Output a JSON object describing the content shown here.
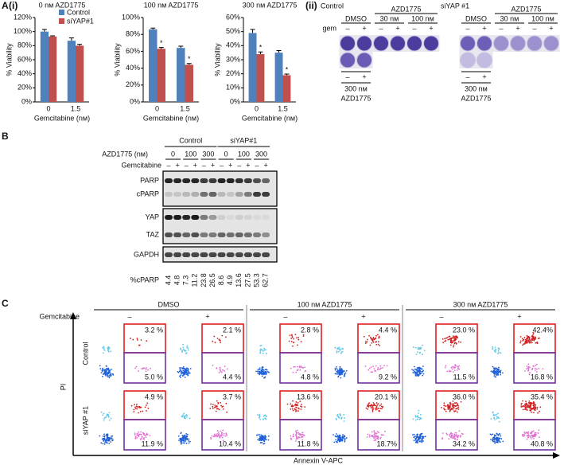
{
  "figure": {
    "panel_a": "A",
    "panel_a_sub": "(i)",
    "panel_a2": "(ii)",
    "panel_b": "B",
    "panel_c": "C"
  },
  "chart_data": [
    {
      "type": "bar",
      "title": "0 nᴍ AZD1775",
      "x_label": "Gemcitabine (nᴍ)",
      "y_label": "% Viability",
      "categories": [
        "0",
        "1.5"
      ],
      "series": [
        {
          "name": "Control",
          "color": "#4f81bd",
          "values": [
            100,
            87
          ],
          "errors": [
            3,
            4
          ]
        },
        {
          "name": "siYAP#1",
          "color": "#c0504d",
          "values": [
            93,
            80
          ],
          "errors": [
            1,
            2
          ]
        }
      ],
      "ylim": [
        0,
        120
      ],
      "yticks": [
        {
          "value": 0,
          "label": "0%"
        },
        {
          "value": 20,
          "label": "20%"
        },
        {
          "value": 40,
          "label": "40%"
        },
        {
          "value": 60,
          "label": "60%"
        },
        {
          "value": 80,
          "label": "80%"
        },
        {
          "value": 100,
          "label": "100%"
        },
        {
          "value": 120,
          "label": "120%"
        }
      ],
      "legend": "upper right"
    },
    {
      "type": "bar",
      "title": "100 nᴍ AZD1775",
      "x_label": "Gemcitabine (nᴍ)",
      "y_label": "% Viability",
      "categories": [
        "0",
        "1.5"
      ],
      "series": [
        {
          "color": "#4f81bd",
          "values": [
            86,
            64
          ],
          "errors": [
            1.5,
            2
          ]
        },
        {
          "color": "#c0504d",
          "values": [
            63,
            44
          ],
          "errors": [
            1.5,
            1.5
          ],
          "significance": [
            "*",
            "*"
          ]
        }
      ],
      "ylim": [
        0,
        100
      ],
      "yticks": [
        {
          "value": 0,
          "label": "0%"
        },
        {
          "value": 20,
          "label": "20%"
        },
        {
          "value": 40,
          "label": "40%"
        },
        {
          "value": 60,
          "label": "60%"
        },
        {
          "value": 80,
          "label": "80%"
        },
        {
          "value": 100,
          "label": "100%"
        }
      ]
    },
    {
      "type": "bar",
      "title": "300 nᴍ AZD1775",
      "x_label": "Gemcitabine (nᴍ)",
      "y_label": "% Viability",
      "categories": [
        "0",
        "1.5"
      ],
      "series": [
        {
          "color": "#4f81bd",
          "values": [
            49,
            35
          ],
          "errors": [
            2.5,
            1.5
          ]
        },
        {
          "color": "#c0504d",
          "values": [
            34,
            19
          ],
          "errors": [
            1.5,
            0.8
          ],
          "significance": [
            "*",
            "*"
          ]
        }
      ],
      "ylim": [
        0,
        60
      ],
      "yticks": [
        {
          "value": 0,
          "label": "0%"
        },
        {
          "value": 10,
          "label": "10%"
        },
        {
          "value": 20,
          "label": "20%"
        },
        {
          "value": 30,
          "label": "30%"
        },
        {
          "value": 40,
          "label": "40%"
        },
        {
          "value": 50,
          "label": "50%"
        },
        {
          "value": 60,
          "label": "60%"
        }
      ]
    }
  ],
  "plates": [
    {
      "title": "Control",
      "drug": "AZD1775",
      "groups": [
        "DMSO",
        "30 nᴍ",
        "100 nᴍ"
      ],
      "gem": "gem",
      "signs": [
        "–",
        "+",
        "–",
        "+",
        "–",
        "+"
      ],
      "extra_signs": [
        "–",
        "+"
      ],
      "extra_dose": "300 nᴍ",
      "extra_drug": "AZD1775"
    },
    {
      "title": "siYAP #1",
      "drug": "AZD1775",
      "groups": [
        "DMSO",
        "30 nᴍ",
        "100 nᴍ"
      ],
      "signs": [
        "–",
        "+",
        "–",
        "+",
        "–",
        "+"
      ],
      "extra_signs": [
        "–",
        "+"
      ],
      "extra_dose": "300 nᴍ",
      "extra_drug": "AZD1775"
    }
  ],
  "blot": {
    "groups": [
      "Control",
      "siYAP#1"
    ],
    "drug_label": "AZD1775 (nᴍ)",
    "doses": [
      "0",
      "100",
      "300",
      "0",
      "100",
      "300"
    ],
    "gem_label": "Gemcitabine",
    "gem_signs": [
      "–",
      "+",
      "–",
      "+",
      "–",
      "+",
      "–",
      "+",
      "–",
      "+",
      "–",
      "+"
    ],
    "bands": [
      "PARP",
      "cPARP",
      "YAP",
      "TAZ",
      "GAPDH"
    ],
    "quant_label": "%cPARP",
    "quant": [
      4.4,
      4.8,
      7.3,
      11.2,
      23.8,
      26.5,
      8.6,
      4.9,
      13.6,
      27.5,
      53.3,
      62.7
    ]
  },
  "flow": {
    "conditions": [
      "DMSO",
      "100 nᴍ AZD1775",
      "300 nᴍ AZD1775"
    ],
    "gem_label": "Gemcitabine",
    "gem_signs": [
      "–",
      "+",
      "–",
      "+",
      "–",
      "+"
    ],
    "rows": [
      {
        "label": "Control",
        "upper": [
          "3.2 %",
          "2.1 %",
          "2.8 %",
          "4.4 %",
          "23.0 %",
          "42.4%"
        ],
        "lower": [
          "5.0 %",
          "4.4 %",
          "4.8 %",
          "9.2 %",
          "11.5 %",
          "16.8 %"
        ]
      },
      {
        "label": "siYAP #1",
        "upper": [
          "4.9 %",
          "3.7 %",
          "13.6 %",
          "20.1 %",
          "36.0 %",
          "35.4 %"
        ],
        "lower": [
          "11.9 %",
          "10.4 %",
          "11.8 %",
          "18.7%",
          "34.2 %",
          "40.8 %"
        ]
      }
    ],
    "y_axis": "PI",
    "x_axis": "Annexin V-APC"
  }
}
